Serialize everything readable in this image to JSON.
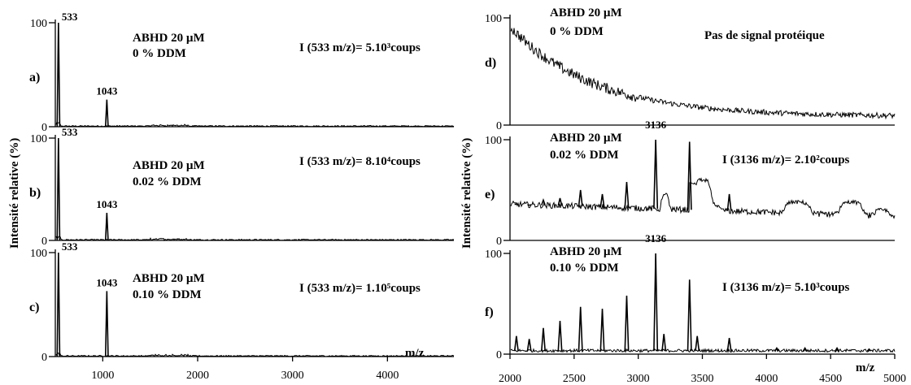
{
  "figure": {
    "ylabel": "Intensité relative (%)",
    "xlabel": "m/z"
  },
  "chart_data": [
    {
      "type": "line",
      "panel": "a)",
      "xlim": [
        500,
        4700
      ],
      "ylim": [
        0,
        100
      ],
      "xticks": [],
      "yticks": [
        0,
        100
      ],
      "sample": [
        "ABHD 20 µM",
        "0 % DDM"
      ],
      "intensity_text": "I (533 m/z)= 5.10³coups",
      "peaks": [
        {
          "mz": 533,
          "label": "533",
          "height": 100
        },
        {
          "mz": 1043,
          "label": "1043",
          "height": 26
        }
      ],
      "baseline": "low"
    },
    {
      "type": "line",
      "panel": "b)",
      "xlim": [
        500,
        4700
      ],
      "ylim": [
        0,
        100
      ],
      "xticks": [],
      "yticks": [
        0,
        100
      ],
      "sample": [
        "ABHD 20 µM",
        "0.02 % DDM"
      ],
      "intensity_text": "I (533 m/z)= 8.10⁴coups",
      "peaks": [
        {
          "mz": 533,
          "label": "533",
          "height": 100
        },
        {
          "mz": 1043,
          "label": "1043",
          "height": 27
        }
      ],
      "baseline": "low"
    },
    {
      "type": "line",
      "panel": "c)",
      "xlim": [
        500,
        4700
      ],
      "ylim": [
        0,
        100
      ],
      "xticks": [
        1000,
        2000,
        3000,
        4000
      ],
      "yticks": [
        0,
        100
      ],
      "sample": [
        "ABHD 20 µM",
        "0.10 % DDM"
      ],
      "intensity_text": "I (533 m/z)= 1.10⁵coups",
      "peaks": [
        {
          "mz": 533,
          "label": "533",
          "height": 100
        },
        {
          "mz": 1043,
          "label": "1043",
          "height": 63
        }
      ],
      "baseline": "low"
    },
    {
      "type": "line",
      "panel": "d)",
      "xlim": [
        2000,
        5000
      ],
      "ylim": [
        0,
        100
      ],
      "xticks": [],
      "yticks": [
        0,
        100
      ],
      "sample": [
        "ABHD 20 µM",
        "0 % DDM"
      ],
      "intensity_text": "Pas de signal protéique",
      "peaks": [],
      "baseline": "decay"
    },
    {
      "type": "line",
      "panel": "e)",
      "xlim": [
        2000,
        5000
      ],
      "ylim": [
        0,
        100
      ],
      "xticks": [],
      "yticks": [
        0,
        100
      ],
      "sample": [
        "ABHD 20 µM",
        "0.02 % DDM"
      ],
      "intensity_text": "I (3136 m/z)= 2.10²coups",
      "top_label": {
        "mz": 3136,
        "label": "3136"
      },
      "peaks": [
        {
          "mz": 2050,
          "height": 36
        },
        {
          "mz": 2150,
          "height": 35
        },
        {
          "mz": 2260,
          "height": 40
        },
        {
          "mz": 2390,
          "height": 42
        },
        {
          "mz": 2550,
          "height": 50
        },
        {
          "mz": 2720,
          "height": 46
        },
        {
          "mz": 2910,
          "height": 58
        },
        {
          "mz": 3136,
          "height": 100
        },
        {
          "mz": 3400,
          "height": 98
        },
        {
          "mz": 3710,
          "height": 46
        }
      ],
      "humps": [
        {
          "from": 3160,
          "to": 3260,
          "level": 45
        },
        {
          "from": 3400,
          "to": 3600,
          "level": 60
        },
        {
          "from": 4080,
          "to": 4400,
          "level": 38
        },
        {
          "from": 4520,
          "to": 4800,
          "level": 38
        },
        {
          "from": 4800,
          "to": 5000,
          "level": 30
        }
      ],
      "baseline": "raised"
    },
    {
      "type": "line",
      "panel": "f)",
      "xlim": [
        2000,
        5000
      ],
      "ylim": [
        0,
        100
      ],
      "xticks": [
        2000,
        2500,
        3000,
        3500,
        4000,
        4500,
        5000
      ],
      "yticks": [
        0,
        100
      ],
      "sample": [
        "ABHD 20 µM",
        "0.10 % DDM"
      ],
      "intensity_text": "I (3136 m/z)= 5.10³coups",
      "top_label": {
        "mz": 3136,
        "label": "3136"
      },
      "peaks": [
        {
          "mz": 2050,
          "height": 18
        },
        {
          "mz": 2150,
          "height": 15
        },
        {
          "mz": 2260,
          "height": 26
        },
        {
          "mz": 2390,
          "height": 33
        },
        {
          "mz": 2550,
          "height": 47
        },
        {
          "mz": 2720,
          "height": 45
        },
        {
          "mz": 2910,
          "height": 58
        },
        {
          "mz": 3136,
          "height": 100
        },
        {
          "mz": 3200,
          "height": 20
        },
        {
          "mz": 3400,
          "height": 74
        },
        {
          "mz": 3460,
          "height": 18
        },
        {
          "mz": 3710,
          "height": 16
        },
        {
          "mz": 4080,
          "height": 6
        },
        {
          "mz": 4300,
          "height": 6
        },
        {
          "mz": 4550,
          "height": 6
        },
        {
          "mz": 4800,
          "height": 5
        }
      ],
      "baseline": "flat"
    }
  ]
}
